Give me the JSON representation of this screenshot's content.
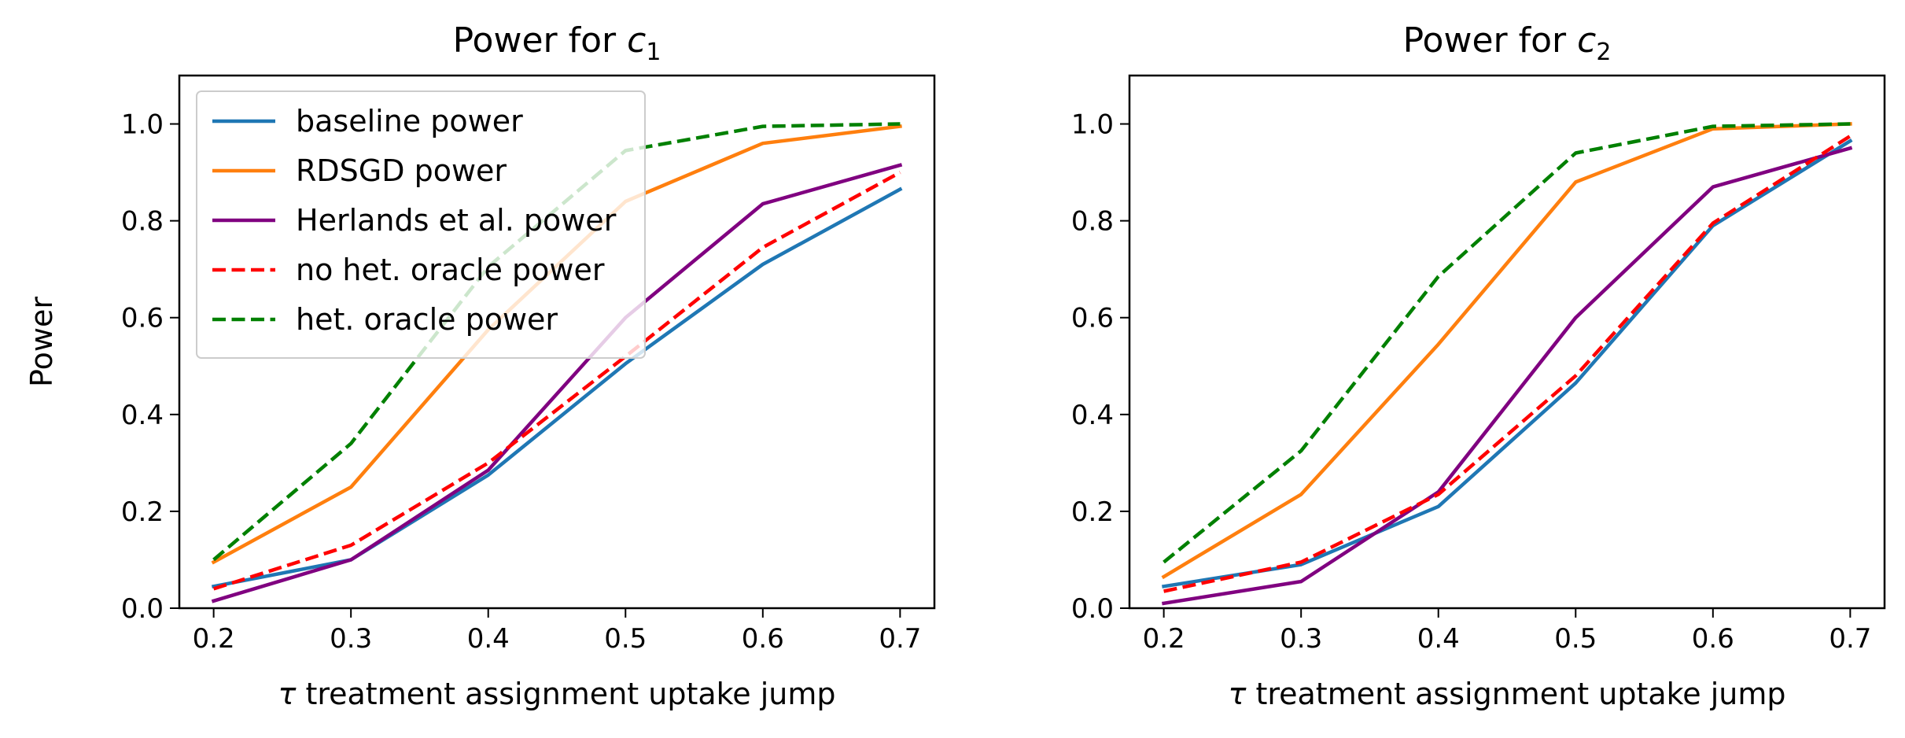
{
  "chart_data": [
    {
      "type": "line",
      "title_prefix": "Power for ",
      "title_var": "c",
      "title_sub": "1",
      "xlabel_var": "τ",
      "xlabel": " treatment assignment uptake jump",
      "ylabel": "Power",
      "x": [
        0.2,
        0.3,
        0.4,
        0.5,
        0.6,
        0.7
      ],
      "xticks": [
        "0.2",
        "0.3",
        "0.4",
        "0.5",
        "0.6",
        "0.7"
      ],
      "yticks": [
        "0.0",
        "0.2",
        "0.4",
        "0.6",
        "0.8",
        "1.0"
      ],
      "xlim": [
        0.175,
        0.725
      ],
      "ylim": [
        0.0,
        1.1
      ],
      "grid": false,
      "legend_position": "top-left",
      "series": [
        {
          "name": "baseline power",
          "color": "#1f77b4",
          "dash": "solid",
          "values": [
            0.045,
            0.1,
            0.275,
            0.505,
            0.71,
            0.865
          ]
        },
        {
          "name": "RDSGD power",
          "color": "#ff7f0e",
          "dash": "solid",
          "values": [
            0.095,
            0.25,
            0.575,
            0.84,
            0.96,
            0.995
          ]
        },
        {
          "name": "Herlands et al. power",
          "color": "#800080",
          "dash": "solid",
          "values": [
            0.015,
            0.1,
            0.285,
            0.6,
            0.835,
            0.915
          ]
        },
        {
          "name": "no het. oracle power",
          "color": "#ff0000",
          "dash": "dashed",
          "values": [
            0.04,
            0.13,
            0.3,
            0.52,
            0.745,
            0.9
          ]
        },
        {
          "name": "het. oracle power",
          "color": "#008000",
          "dash": "dashed",
          "values": [
            0.1,
            0.34,
            0.705,
            0.945,
            0.995,
            1.0
          ]
        }
      ]
    },
    {
      "type": "line",
      "title_prefix": "Power for ",
      "title_var": "c",
      "title_sub": "2",
      "xlabel_var": "τ",
      "xlabel": " treatment assignment uptake jump",
      "ylabel": "",
      "x": [
        0.2,
        0.3,
        0.4,
        0.5,
        0.6,
        0.7
      ],
      "xticks": [
        "0.2",
        "0.3",
        "0.4",
        "0.5",
        "0.6",
        "0.7"
      ],
      "yticks": [
        "0.0",
        "0.2",
        "0.4",
        "0.6",
        "0.8",
        "1.0"
      ],
      "xlim": [
        0.175,
        0.725
      ],
      "ylim": [
        0.0,
        1.1
      ],
      "grid": false,
      "series": [
        {
          "name": "baseline power",
          "color": "#1f77b4",
          "dash": "solid",
          "values": [
            0.045,
            0.09,
            0.21,
            0.465,
            0.79,
            0.965
          ]
        },
        {
          "name": "RDSGD power",
          "color": "#ff7f0e",
          "dash": "solid",
          "values": [
            0.065,
            0.235,
            0.545,
            0.88,
            0.99,
            1.0
          ]
        },
        {
          "name": "Herlands et al. power",
          "color": "#800080",
          "dash": "solid",
          "values": [
            0.01,
            0.055,
            0.24,
            0.6,
            0.87,
            0.95
          ]
        },
        {
          "name": "no het. oracle power",
          "color": "#ff0000",
          "dash": "dashed",
          "values": [
            0.035,
            0.095,
            0.235,
            0.48,
            0.795,
            0.975
          ]
        },
        {
          "name": "het. oracle power",
          "color": "#008000",
          "dash": "dashed",
          "values": [
            0.095,
            0.325,
            0.685,
            0.94,
            0.995,
            1.0
          ]
        }
      ]
    }
  ]
}
